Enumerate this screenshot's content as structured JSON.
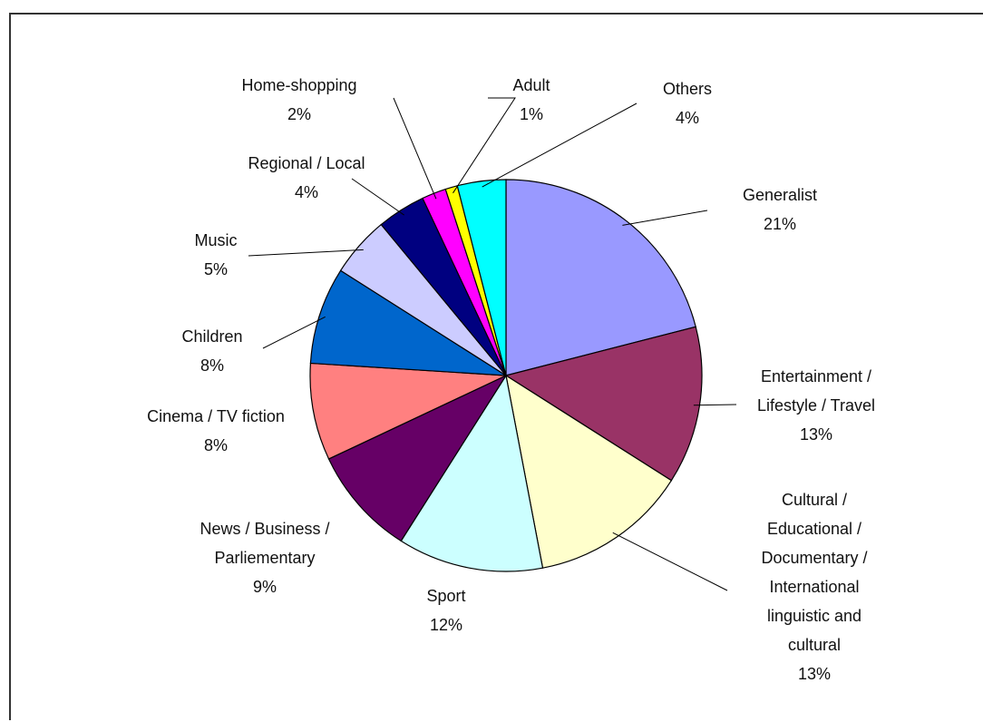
{
  "chart_data": {
    "type": "pie",
    "start_angle_deg": 0,
    "direction": "clockwise",
    "slices": [
      {
        "label_lines": [
          "Generalist"
        ],
        "percent_label": "21%",
        "value": 21,
        "color": "#9999ff"
      },
      {
        "label_lines": [
          "Entertainment /",
          "Lifestyle / Travel"
        ],
        "percent_label": "13%",
        "value": 13,
        "color": "#993366"
      },
      {
        "label_lines": [
          "Cultural /",
          "Educational /",
          "Documentary /",
          "International",
          "linguistic and",
          "cultural"
        ],
        "percent_label": "13%",
        "value": 13,
        "color": "#ffffcc"
      },
      {
        "label_lines": [
          "Sport"
        ],
        "percent_label": "12%",
        "value": 12,
        "color": "#ccffff"
      },
      {
        "label_lines": [
          "News / Business /",
          "Parliementary"
        ],
        "percent_label": "9%",
        "value": 9,
        "color": "#660066"
      },
      {
        "label_lines": [
          "Cinema / TV fiction"
        ],
        "percent_label": "8%",
        "value": 8,
        "color": "#ff8080"
      },
      {
        "label_lines": [
          "Children"
        ],
        "percent_label": "8%",
        "value": 8,
        "color": "#0066cc"
      },
      {
        "label_lines": [
          "Music"
        ],
        "percent_label": "5%",
        "value": 5,
        "color": "#ccccff"
      },
      {
        "label_lines": [
          "Regional / Local"
        ],
        "percent_label": "4%",
        "value": 4,
        "color": "#000080"
      },
      {
        "label_lines": [
          "Home-shopping"
        ],
        "percent_label": "2%",
        "value": 2,
        "color": "#ff00ff"
      },
      {
        "label_lines": [
          "Adult"
        ],
        "percent_label": "1%",
        "value": 1,
        "color": "#ffff00"
      },
      {
        "label_lines": [
          "Others"
        ],
        "percent_label": "4%",
        "value": 4,
        "color": "#00ffff"
      }
    ]
  }
}
